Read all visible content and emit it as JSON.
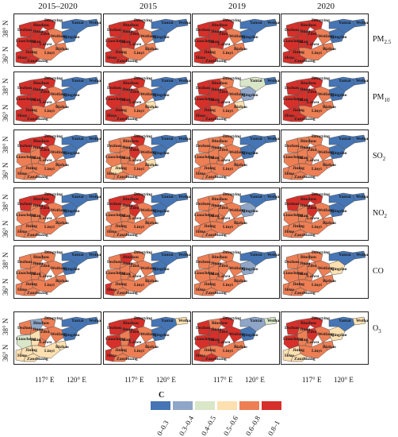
{
  "columns": [
    "2015–2020",
    "2015",
    "2019",
    "2020"
  ],
  "rows": [
    {
      "id": "pm25",
      "label_main": "PM",
      "label_sub": "2.5"
    },
    {
      "id": "pm10",
      "label_main": "PM",
      "label_sub": "10"
    },
    {
      "id": "so2",
      "label_main": "SO",
      "label_sub": "2"
    },
    {
      "id": "no2",
      "label_main": "NO",
      "label_sub": "2"
    },
    {
      "id": "co",
      "label_main": "CO",
      "label_sub": ""
    },
    {
      "id": "o3",
      "label_main": "O",
      "label_sub": "3"
    }
  ],
  "axes": {
    "lat_ticks": [
      "38° N",
      "36° N"
    ],
    "lon_ticks": [
      "117° E",
      "120° E"
    ]
  },
  "cities": [
    "Dongying",
    "Binzhou",
    "Dezhou",
    "Zibo",
    "Liaocheng",
    "Weifang",
    "Qingdao",
    "Yantai",
    "Weihai",
    "Taian",
    "Laiwu",
    "Jinan",
    "Jining",
    "Linyi",
    "Rizhao",
    "Heze",
    "Zaozhuang"
  ],
  "legend": {
    "title": "C",
    "classes": [
      {
        "label": "0–0.3",
        "color": "#4575b4"
      },
      {
        "label": "0.3–0.4",
        "color": "#8fa6c8"
      },
      {
        "label": "0.4–0.5",
        "color": "#d9e6c8"
      },
      {
        "label": "0.5–0.6",
        "color": "#fde0b0"
      },
      {
        "label": "0.6–0.8",
        "color": "#ee7f55"
      },
      {
        "label": "0.8–1",
        "color": "#d7302a"
      }
    ]
  },
  "chart_data": {
    "type": "heatmap",
    "description_of_values": "class index 0-5 per city (0: 0–0.3 ... 5: 0.8–1)",
    "cities": [
      "Dongying",
      "Binzhou",
      "Dezhou",
      "Zibo",
      "Liaocheng",
      "Weifang",
      "Qingdao",
      "Yantai",
      "Weihai",
      "Taian",
      "Laiwu",
      "Jinan",
      "Jining",
      "Linyi",
      "Rizhao",
      "Heze",
      "Zaozhuang"
    ],
    "panels": {
      "pm25": [
        [
          5,
          5,
          5,
          5,
          5,
          4,
          0,
          0,
          0,
          5,
          5,
          5,
          5,
          4,
          4,
          5,
          5
        ],
        [
          5,
          5,
          5,
          5,
          5,
          4,
          0,
          0,
          0,
          5,
          5,
          5,
          5,
          4,
          4,
          5,
          5
        ],
        [
          5,
          5,
          5,
          5,
          5,
          4,
          0,
          0,
          0,
          5,
          5,
          5,
          5,
          4,
          4,
          5,
          5
        ],
        [
          5,
          5,
          5,
          5,
          5,
          4,
          0,
          0,
          0,
          5,
          5,
          5,
          5,
          4,
          4,
          5,
          5
        ]
      ],
      "pm10": [
        [
          5,
          5,
          5,
          5,
          5,
          4,
          0,
          0,
          0,
          5,
          5,
          5,
          5,
          4,
          4,
          5,
          5
        ],
        [
          5,
          5,
          5,
          5,
          5,
          4,
          0,
          0,
          0,
          5,
          5,
          5,
          5,
          4,
          3,
          5,
          5
        ],
        [
          4,
          5,
          5,
          5,
          5,
          4,
          1,
          2,
          0,
          5,
          5,
          5,
          5,
          4,
          3,
          5,
          5
        ],
        [
          5,
          5,
          5,
          5,
          5,
          4,
          0,
          0,
          0,
          5,
          5,
          5,
          5,
          4,
          4,
          5,
          5
        ]
      ],
      "so2": [
        [
          5,
          5,
          5,
          5,
          4,
          4,
          0,
          0,
          0,
          4,
          4,
          4,
          4,
          4,
          4,
          4,
          4
        ],
        [
          5,
          4,
          4,
          5,
          4,
          4,
          0,
          0,
          0,
          4,
          4,
          4,
          3,
          4,
          3,
          4,
          4
        ],
        [
          4,
          4,
          4,
          4,
          4,
          4,
          0,
          0,
          0,
          4,
          4,
          4,
          4,
          4,
          4,
          4,
          4
        ],
        [
          4,
          4,
          4,
          4,
          4,
          4,
          0,
          0,
          0,
          4,
          4,
          4,
          4,
          4,
          4,
          4,
          4
        ]
      ],
      "no2": [
        [
          5,
          5,
          5,
          5,
          4,
          4,
          0,
          0,
          0,
          4,
          4,
          4,
          4,
          4,
          4,
          4,
          4
        ],
        [
          5,
          5,
          5,
          5,
          4,
          4,
          0,
          0,
          0,
          4,
          4,
          4,
          4,
          4,
          4,
          4,
          4
        ],
        [
          4,
          4,
          4,
          4,
          4,
          4,
          1,
          0,
          0,
          4,
          4,
          4,
          4,
          4,
          4,
          4,
          4
        ],
        [
          5,
          5,
          5,
          5,
          4,
          4,
          0,
          0,
          0,
          4,
          4,
          4,
          4,
          4,
          4,
          4,
          4
        ]
      ],
      "co": [
        [
          4,
          4,
          4,
          4,
          4,
          4,
          0,
          0,
          0,
          4,
          4,
          4,
          4,
          4,
          4,
          4,
          4
        ],
        [
          4,
          5,
          4,
          4,
          4,
          4,
          0,
          0,
          0,
          4,
          4,
          4,
          4,
          4,
          4,
          5,
          4
        ],
        [
          4,
          4,
          4,
          4,
          4,
          4,
          1,
          0,
          0,
          4,
          4,
          4,
          4,
          4,
          4,
          4,
          4
        ],
        [
          4,
          4,
          4,
          4,
          4,
          4,
          3,
          0,
          0,
          4,
          4,
          4,
          4,
          4,
          4,
          4,
          4
        ]
      ],
      "o3": [
        [
          4,
          1,
          4,
          4,
          2,
          4,
          0,
          0,
          0,
          3,
          4,
          4,
          3,
          3,
          3,
          3,
          3
        ],
        [
          5,
          5,
          5,
          5,
          5,
          4,
          0,
          0,
          3,
          4,
          5,
          5,
          4,
          4,
          4,
          5,
          4
        ],
        [
          5,
          4,
          5,
          5,
          5,
          5,
          0,
          1,
          2,
          5,
          5,
          5,
          4,
          4,
          4,
          5,
          5
        ],
        [
          5,
          5,
          5,
          5,
          5,
          4,
          3,
          0,
          3,
          4,
          4,
          4,
          3,
          4,
          4,
          3,
          3
        ]
      ]
    }
  }
}
